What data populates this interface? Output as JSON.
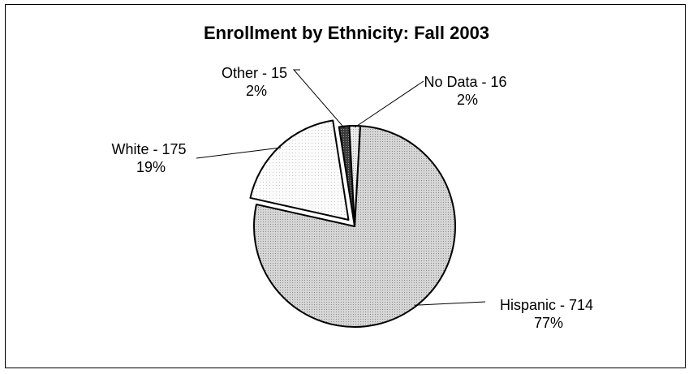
{
  "chart_data": {
    "type": "pie",
    "title": "Enrollment by Ethnicity: Fall 2003",
    "slices": [
      {
        "category": "Hispanic",
        "value": 714,
        "percent": "77%",
        "label": "Hispanic - 714",
        "fill": "hispanic"
      },
      {
        "category": "White",
        "value": 175,
        "percent": "19%",
        "label": "White - 175",
        "fill": "white",
        "exploded": true
      },
      {
        "category": "Other",
        "value": 15,
        "percent": "2%",
        "label": "Other - 15",
        "fill": "other"
      },
      {
        "category": "No Data",
        "value": 16,
        "percent": "2%",
        "label": "No Data - 16",
        "fill": "nodata"
      }
    ],
    "legend": "none"
  }
}
